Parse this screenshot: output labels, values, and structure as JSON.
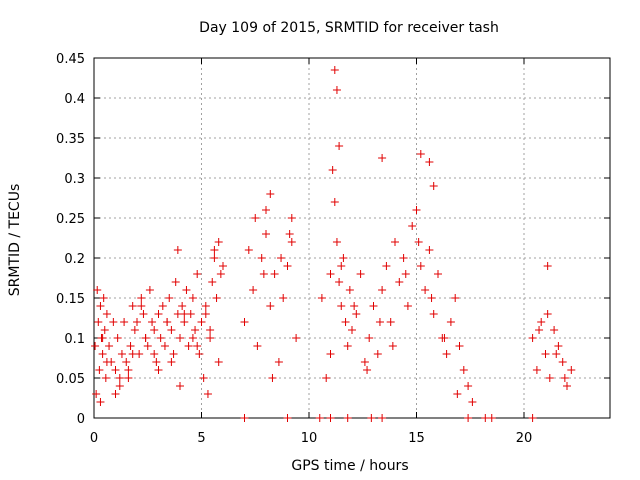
{
  "chart_data": {
    "type": "scatter",
    "title": "Day 109 of 2015, SRMTID for receiver tash",
    "xlabel": "GPS time / hours",
    "ylabel": "SRMTID / TECUs",
    "xlim": [
      0,
      24
    ],
    "ylim": [
      0,
      0.45
    ],
    "xticks": [
      0,
      5,
      10,
      15,
      20
    ],
    "xtick_labels": [
      "0",
      "5",
      "10",
      "15",
      "20"
    ],
    "yticks": [
      0,
      0.05,
      0.1,
      0.15,
      0.2,
      0.25,
      0.3,
      0.35,
      0.4,
      0.45
    ],
    "ytick_labels": [
      "0",
      "0.05",
      "0.1",
      "0.15",
      "0.2",
      "0.25",
      "0.3",
      "0.35",
      "0.4",
      "0.45"
    ],
    "grid": true,
    "marker": "+",
    "color": "#e00000",
    "series": [
      {
        "name": "SRMTID",
        "x": [
          0.05,
          0.1,
          0.15,
          0.2,
          0.25,
          0.3,
          0.35,
          0.4,
          0.45,
          0.5,
          0.55,
          0.6,
          0.7,
          0.8,
          0.9,
          1.0,
          1.1,
          1.2,
          1.3,
          1.4,
          1.5,
          1.6,
          1.7,
          1.8,
          1.9,
          2.0,
          2.1,
          2.2,
          2.3,
          2.4,
          2.5,
          2.6,
          2.7,
          2.8,
          2.9,
          3.0,
          3.1,
          3.2,
          3.3,
          3.4,
          3.5,
          3.6,
          3.7,
          3.8,
          3.9,
          4.0,
          4.1,
          4.2,
          4.3,
          4.4,
          4.5,
          4.6,
          4.7,
          4.8,
          4.9,
          5.0,
          5.1,
          5.2,
          5.3,
          5.4,
          5.5,
          5.6,
          5.7,
          5.8,
          5.9,
          6.0,
          7.0,
          7.2,
          7.4,
          7.6,
          7.8,
          8.0,
          8.2,
          8.4,
          8.6,
          8.8,
          9.0,
          9.2,
          9.4,
          10.6,
          10.8,
          11.0,
          11.1,
          11.2,
          11.3,
          11.4,
          11.5,
          11.6,
          11.7,
          11.8,
          11.9,
          12.0,
          12.2,
          12.4,
          12.6,
          12.8,
          13.0,
          13.2,
          13.4,
          13.6,
          13.8,
          14.0,
          14.2,
          14.4,
          14.6,
          14.8,
          15.0,
          15.2,
          15.4,
          15.6,
          15.8,
          16.0,
          16.2,
          16.4,
          16.6,
          16.8,
          17.0,
          17.2,
          17.4,
          17.6,
          20.4,
          20.6,
          20.8,
          21.0,
          21.2,
          21.4,
          21.6,
          21.8,
          22.0,
          22.2,
          0.3,
          0.6,
          1.2,
          1.8,
          2.4,
          3.0,
          3.6,
          4.2,
          4.8,
          5.4,
          0.4,
          1.0,
          1.6,
          2.2,
          2.8,
          3.4,
          4.0,
          4.6,
          5.2,
          5.8,
          7.5,
          7.9,
          8.3,
          8.7,
          9.1,
          11.0,
          11.5,
          12.1,
          12.7,
          13.3,
          13.9,
          14.5,
          15.1,
          15.7,
          16.3,
          16.9,
          20.7,
          21.1,
          21.5,
          21.9,
          11.2,
          11.3,
          11.4,
          13.4,
          15.2,
          15.6,
          15.8,
          8.2,
          8.0,
          9.2,
          3.9,
          5.6,
          21.1,
          7.0,
          9.0,
          10.5,
          11.0,
          11.8,
          12.9,
          13.4,
          17.4,
          18.2,
          18.5,
          20.4
        ],
        "y": [
          0.09,
          0.03,
          0.16,
          0.12,
          0.06,
          0.14,
          0.1,
          0.08,
          0.15,
          0.11,
          0.05,
          0.13,
          0.09,
          0.07,
          0.12,
          0.06,
          0.1,
          0.04,
          0.08,
          0.12,
          0.07,
          0.05,
          0.09,
          0.14,
          0.11,
          0.12,
          0.08,
          0.15,
          0.13,
          0.1,
          0.09,
          0.16,
          0.12,
          0.11,
          0.07,
          0.13,
          0.1,
          0.14,
          0.09,
          0.12,
          0.15,
          0.11,
          0.08,
          0.17,
          0.13,
          0.1,
          0.14,
          0.12,
          0.16,
          0.09,
          0.13,
          0.15,
          0.11,
          0.18,
          0.08,
          0.12,
          0.05,
          0.14,
          0.03,
          0.1,
          0.17,
          0.2,
          0.15,
          0.22,
          0.18,
          0.19,
          0.12,
          0.21,
          0.16,
          0.09,
          0.2,
          0.23,
          0.14,
          0.18,
          0.07,
          0.15,
          0.19,
          0.22,
          0.1,
          0.15,
          0.05,
          0.18,
          0.31,
          0.27,
          0.22,
          0.17,
          0.14,
          0.2,
          0.12,
          0.09,
          0.16,
          0.11,
          0.13,
          0.18,
          0.07,
          0.1,
          0.14,
          0.08,
          0.16,
          0.19,
          0.12,
          0.22,
          0.17,
          0.2,
          0.14,
          0.24,
          0.26,
          0.19,
          0.16,
          0.21,
          0.13,
          0.18,
          0.1,
          0.08,
          0.12,
          0.15,
          0.09,
          0.06,
          0.04,
          0.02,
          0.1,
          0.06,
          0.12,
          0.08,
          0.05,
          0.11,
          0.09,
          0.07,
          0.04,
          0.06,
          0.02,
          0.07,
          0.05,
          0.08,
          0.1,
          0.06,
          0.07,
          0.13,
          0.09,
          0.11,
          0.1,
          0.03,
          0.06,
          0.14,
          0.08,
          0.12,
          0.04,
          0.1,
          0.13,
          0.07,
          0.25,
          0.18,
          0.05,
          0.2,
          0.23,
          0.08,
          0.19,
          0.14,
          0.06,
          0.12,
          0.09,
          0.18,
          0.22,
          0.15,
          0.1,
          0.03,
          0.11,
          0.13,
          0.08,
          0.05,
          0.435,
          0.41,
          0.34,
          0.325,
          0.33,
          0.32,
          0.29,
          0.28,
          0.26,
          0.25,
          0.21,
          0.21,
          0.19,
          0.0,
          0.0,
          0.0,
          0.0,
          0.0,
          0.0,
          0.0,
          0.0,
          0.0,
          0.0,
          0.0
        ]
      }
    ]
  }
}
